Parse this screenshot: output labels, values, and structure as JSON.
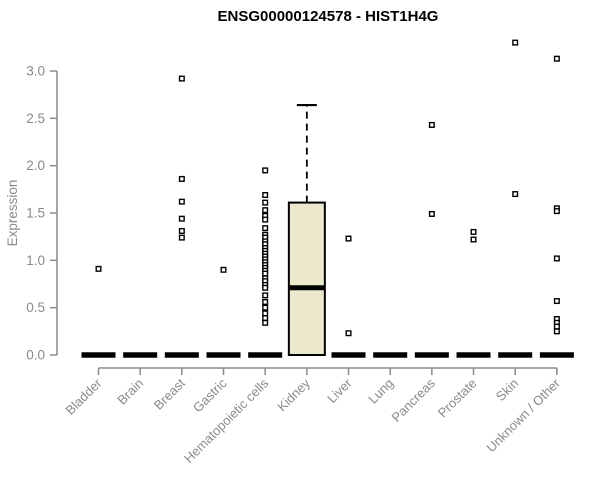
{
  "chart_data": {
    "type": "boxplot",
    "title": "ENSG00000124578 - HIST1H4G",
    "ylabel": "Expression",
    "xlabel": "",
    "ylim": [
      0.0,
      3.0
    ],
    "ytick_labels": [
      "0.0",
      "0.5",
      "1.0",
      "1.5",
      "2.0",
      "2.5",
      "3.0"
    ],
    "yticks": [
      0.0,
      0.5,
      1.0,
      1.5,
      2.0,
      2.5,
      3.0
    ],
    "grid": false,
    "legend": "none",
    "categories": [
      "Bladder",
      "Brain",
      "Breast",
      "Gastric",
      "Hematopoietic cells",
      "Kidney",
      "Liver",
      "Lung",
      "Pancreas",
      "Prostate",
      "Skin",
      "Unknown / Other"
    ],
    "boxes": [
      {
        "category": "Bladder",
        "q1": 0.0,
        "median": 0.0,
        "q3": 0.0,
        "whisker_low": 0.0,
        "whisker_high": 0.0,
        "outliers": [
          0.91
        ]
      },
      {
        "category": "Brain",
        "q1": 0.0,
        "median": 0.0,
        "q3": 0.0,
        "whisker_low": 0.0,
        "whisker_high": 0.0,
        "outliers": []
      },
      {
        "category": "Breast",
        "q1": 0.0,
        "median": 0.0,
        "q3": 0.0,
        "whisker_low": 0.0,
        "whisker_high": 0.0,
        "outliers": [
          2.92,
          1.86,
          1.62,
          1.44,
          1.31,
          1.24
        ]
      },
      {
        "category": "Gastric",
        "q1": 0.0,
        "median": 0.0,
        "q3": 0.0,
        "whisker_low": 0.0,
        "whisker_high": 0.0,
        "outliers": [
          0.9
        ]
      },
      {
        "category": "Hematopoietic cells",
        "q1": 0.0,
        "median": 0.0,
        "q3": 0.0,
        "whisker_low": 0.0,
        "whisker_high": 0.0,
        "outliers": [
          1.95,
          1.69,
          1.61,
          1.53,
          1.47,
          1.43,
          1.34,
          1.27,
          1.24,
          1.2,
          1.17,
          1.13,
          1.1,
          1.07,
          1.04,
          1.01,
          0.98,
          0.95,
          0.92,
          0.89,
          0.86,
          0.81,
          0.78,
          0.74,
          0.71,
          0.63,
          0.56,
          0.5,
          0.44,
          0.39,
          0.34
        ]
      },
      {
        "category": "Kidney",
        "q1": 0.0,
        "median": 0.71,
        "q3": 1.61,
        "whisker_low": 0.0,
        "whisker_high": 2.64,
        "outliers": []
      },
      {
        "category": "Liver",
        "q1": 0.0,
        "median": 0.0,
        "q3": 0.0,
        "whisker_low": 0.0,
        "whisker_high": 0.0,
        "outliers": [
          1.23,
          0.23
        ]
      },
      {
        "category": "Lung",
        "q1": 0.0,
        "median": 0.0,
        "q3": 0.0,
        "whisker_low": 0.0,
        "whisker_high": 0.0,
        "outliers": []
      },
      {
        "category": "Pancreas",
        "q1": 0.0,
        "median": 0.0,
        "q3": 0.0,
        "whisker_low": 0.0,
        "whisker_high": 0.0,
        "outliers": [
          2.43,
          1.49
        ]
      },
      {
        "category": "Prostate",
        "q1": 0.0,
        "median": 0.0,
        "q3": 0.0,
        "whisker_low": 0.0,
        "whisker_high": 0.0,
        "outliers": [
          1.3,
          1.22
        ]
      },
      {
        "category": "Skin",
        "q1": 0.0,
        "median": 0.0,
        "q3": 0.0,
        "whisker_low": 0.0,
        "whisker_high": 0.0,
        "outliers": [
          3.3,
          1.7
        ]
      },
      {
        "category": "Unknown / Other",
        "q1": 0.0,
        "median": 0.0,
        "q3": 0.0,
        "whisker_low": 0.0,
        "whisker_high": 0.0,
        "outliers": [
          3.13,
          1.55,
          1.52,
          1.02,
          0.57,
          0.38,
          0.34,
          0.3,
          0.25
        ]
      }
    ],
    "colors": {
      "box_fill": "#ece8cd",
      "box_stroke": "#000000",
      "median": "#000000",
      "outlier_stroke": "#000000",
      "outlier_fill": "#ffffff",
      "axis": "#8a8a8a",
      "title": "#000000",
      "background": "#ffffff"
    }
  }
}
